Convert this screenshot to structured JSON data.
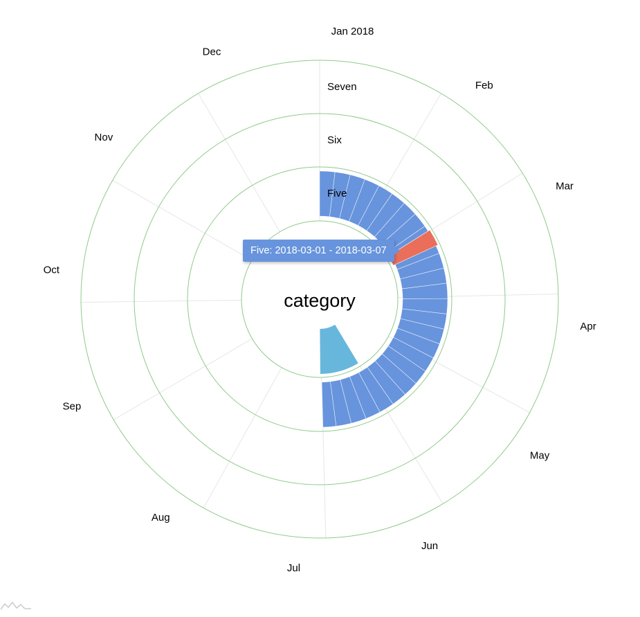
{
  "chart_data": {
    "type": "radial-timeline",
    "center_label": "category",
    "date_axis": {
      "labels": [
        "Jan 2018",
        "Feb",
        "Mar",
        "Apr",
        "May",
        "Jun",
        "Jul",
        "Aug",
        "Sep",
        "Oct",
        "Nov",
        "Dec"
      ],
      "start": "2018-01-01",
      "end": "2018-12-31"
    },
    "categories": [
      "Seven",
      "Six",
      "Five",
      "Four"
    ],
    "category_label_visible": [
      true,
      true,
      true,
      false
    ],
    "bands": [
      {
        "category": "Five",
        "start": "2018-01-01",
        "end": "2018-06-30",
        "color": "#6794dc",
        "bar_span_days": 7
      },
      {
        "category": "Four",
        "start": "2018-06-01",
        "end": "2018-07-01",
        "color": "#67b7dc"
      }
    ],
    "highlighted": {
      "category": "Five",
      "start": "2018-03-01",
      "end": "2018-03-07",
      "color": "#ea6e5a"
    },
    "grid_color": "#8fc98a",
    "tooltip": "Five: 2018-03-01 - 2018-03-07"
  }
}
